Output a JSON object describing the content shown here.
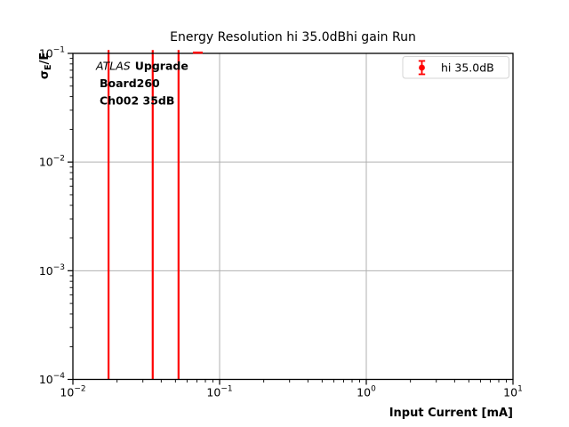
{
  "figure": {
    "title": "Energy Resolution hi 35.0dBhi gain Run",
    "xlabel": "Input Current [mA]",
    "ylabel": {
      "sigma": "σ",
      "subscript": "E",
      "suffix": "/E"
    },
    "annotation": {
      "line1_italic": "ATLAS",
      "line1_bold": "Upgrade",
      "line2": "Board260",
      "line3": "Ch002 35dB"
    },
    "legend": {
      "label": "hi 35.0dB"
    }
  },
  "colors": {
    "series": "#ff0000",
    "grid": "#b0b0b0",
    "axis": "#000000",
    "text": "#000000",
    "legend_border": "#d4d4d4"
  },
  "chart_data": {
    "type": "errorbar",
    "title": "Energy Resolution hi 35.0dBhi gain Run",
    "xlabel": "Input Current [mA]",
    "ylabel": "σ_E/E",
    "xscale": "log",
    "yscale": "log",
    "xlim": [
      0.01,
      10
    ],
    "ylim": [
      0.0001,
      0.1
    ],
    "grid": "major decades only",
    "legend_position": "upper right",
    "series": [
      {
        "name": "hi 35.0dB",
        "color": "#ff0000",
        "marker": "circle with error bars",
        "points": [
          {
            "x": 0.0175,
            "bar": "full-height",
            "note": "error bar spans entire visible y-range, clipped at 1e-4 and 1e-1"
          },
          {
            "x": 0.035,
            "bar": "full-height",
            "note": "error bar spans entire visible y-range, clipped"
          },
          {
            "x": 0.0525,
            "bar": "full-height",
            "note": "error bar spans entire visible y-range, clipped"
          },
          {
            "x": 0.071,
            "y": 0.1,
            "bar": "top-cap-only",
            "note": "only an error-bar cap visible at the top axis edge"
          }
        ]
      }
    ],
    "x_ticks": [
      {
        "value": 0.01,
        "exponent": "−2"
      },
      {
        "value": 0.1,
        "exponent": "−1"
      },
      {
        "value": 1,
        "exponent": "0"
      },
      {
        "value": 10,
        "exponent": "1"
      }
    ],
    "y_ticks": [
      {
        "value": 0.1,
        "exponent": "−1"
      },
      {
        "value": 0.01,
        "exponent": "−2"
      },
      {
        "value": 0.001,
        "exponent": "−3"
      },
      {
        "value": 0.0001,
        "exponent": "−4"
      }
    ]
  }
}
